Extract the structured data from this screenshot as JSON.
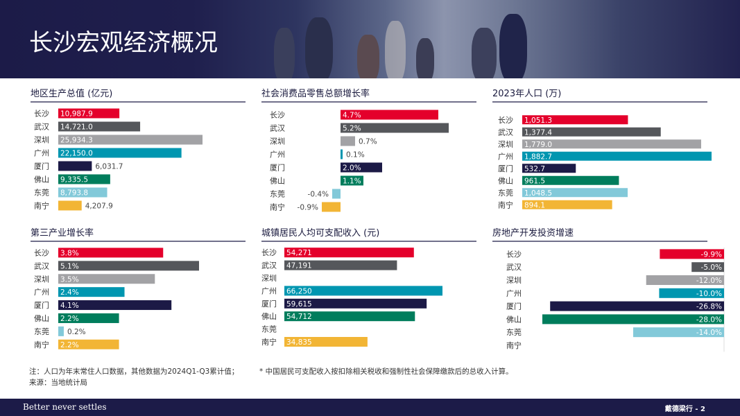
{
  "page": {
    "title": "长沙宏观经济概况",
    "note_line1": "注：人口为年末常住人口数据，其他数据为2024Q1-Q3累计值；",
    "note_line2": "来源：当地统计局",
    "footnote": "* 中国居民可支配收入按扣除相关税收和强制性社会保障缴款后的总收入计算。",
    "slogan": "Better never settles",
    "page_label": "戴德梁行 - 2"
  },
  "colors": {
    "长沙": "#e4002b",
    "武汉": "#55575b",
    "深圳": "#a2a2a5",
    "广州": "#0096b0",
    "厦门": "#1c1a46",
    "佛山": "#007d5c",
    "东莞": "#82c9d9",
    "南宁": "#f2b535",
    "header": "#1c1b48",
    "rule": "#1c1a46"
  },
  "chart_data": [
    {
      "id": "gdp",
      "type": "bar",
      "orientation": "horizontal",
      "title": "地区生产总值 (亿元)",
      "categories": [
        "长沙",
        "武汉",
        "深圳",
        "广州",
        "厦门",
        "佛山",
        "东莞",
        "南宁"
      ],
      "values": [
        10987.9,
        14721.0,
        25934.3,
        22150.0,
        6031.7,
        9335.5,
        8793.8,
        4207.9
      ],
      "labels": [
        "10,987.9",
        "14,721.0",
        "25,934.3",
        "22,150.0",
        "6,031.7",
        "9,335.5",
        "8,793.8",
        "4,207.9"
      ],
      "xlim": [
        0,
        25934.3
      ],
      "grid": false
    },
    {
      "id": "retail",
      "type": "bar",
      "orientation": "horizontal",
      "title": "社会消费品零售总额增长率",
      "categories": [
        "长沙",
        "武汉",
        "深圳",
        "广州",
        "厦门",
        "佛山",
        "东莞",
        "南宁"
      ],
      "values": [
        4.7,
        5.2,
        0.7,
        0.1,
        2.0,
        1.1,
        -0.4,
        -0.9
      ],
      "labels": [
        "4.7%",
        "5.2%",
        "0.7%",
        "0.1%",
        "2.0%",
        "1.1%",
        "-0.4%",
        "-0.9%"
      ],
      "xlim": [
        -0.9,
        5.2
      ],
      "grid": false
    },
    {
      "id": "population",
      "type": "bar",
      "orientation": "horizontal",
      "title": "2023年人口 (万)",
      "categories": [
        "长沙",
        "武汉",
        "深圳",
        "广州",
        "厦门",
        "佛山",
        "东莞",
        "南宁"
      ],
      "values": [
        1051.3,
        1377.4,
        1779.0,
        1882.7,
        532.7,
        961.5,
        1048.5,
        894.1
      ],
      "labels": [
        "1,051.3",
        "1,377.4",
        "1,779.0",
        "1,882.7",
        "532.7",
        "961.5",
        "1,048.5",
        "894.1"
      ],
      "xlim": [
        0,
        1882.7
      ],
      "grid": false
    },
    {
      "id": "tertiary",
      "type": "bar",
      "orientation": "horizontal",
      "title": "第三产业增长率",
      "categories": [
        "长沙",
        "武汉",
        "深圳",
        "广州",
        "厦门",
        "佛山",
        "东莞",
        "南宁"
      ],
      "values": [
        3.8,
        5.1,
        3.5,
        2.4,
        4.1,
        2.2,
        0.2,
        2.2
      ],
      "labels": [
        "3.8%",
        "5.1%",
        "3.5%",
        "2.4%",
        "4.1%",
        "2.2%",
        "0.2%",
        "2.2%"
      ],
      "xlim": [
        0,
        5.1
      ],
      "grid": false
    },
    {
      "id": "income",
      "type": "bar",
      "orientation": "horizontal",
      "title": "城镇居民人均可支配收入 (元)",
      "categories": [
        "长沙",
        "武汉",
        "深圳",
        "广州",
        "厦门",
        "佛山",
        "东莞",
        "南宁"
      ],
      "values": [
        54271,
        47191,
        null,
        66250,
        59615,
        54712,
        null,
        34835
      ],
      "labels": [
        "54,271",
        "47,191",
        "",
        "66,250",
        "59,615",
        "54,712",
        "",
        "34,835"
      ],
      "xlim": [
        0,
        66250
      ],
      "grid": false
    },
    {
      "id": "realestate",
      "type": "bar",
      "orientation": "horizontal",
      "title": "房地产开发投资增速",
      "categories": [
        "长沙",
        "武汉",
        "深圳",
        "广州",
        "厦门",
        "佛山",
        "东莞",
        "南宁"
      ],
      "values": [
        -9.9,
        -5.0,
        -12.0,
        -10.0,
        -26.8,
        -28.0,
        -14.0,
        null
      ],
      "labels": [
        "-9.9%",
        "-5.0%",
        "-12.0%",
        "-10.0%",
        "-26.8%",
        "-28.0%",
        "-14.0%",
        ""
      ],
      "xlim": [
        -28.0,
        0
      ],
      "grid": false
    }
  ]
}
